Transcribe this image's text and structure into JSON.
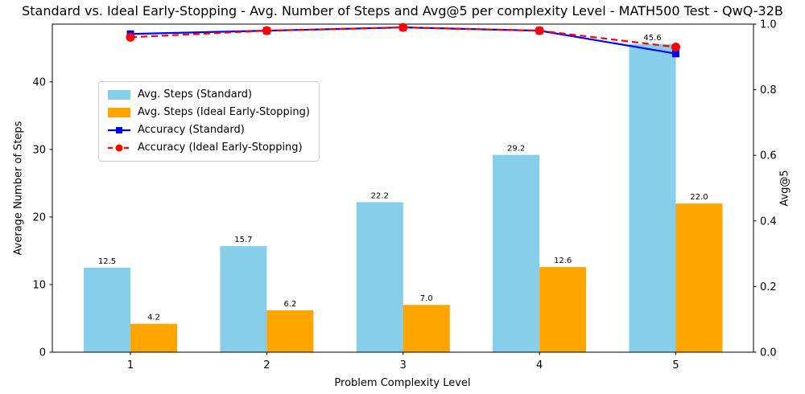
{
  "chart_data": {
    "type": "bar",
    "title": "Standard vs. Ideal Early-Stopping - Avg. Number of Steps and Avg@5 per complexity Level - MATH500 Test - QwQ-32B",
    "xlabel": "Problem Complexity Level",
    "ylabel_left": "Average Number of Steps",
    "ylabel_right": "Avg@5",
    "categories": [
      "1",
      "2",
      "3",
      "4",
      "5"
    ],
    "bar_series": [
      {
        "name": "Avg. Steps (Standard)",
        "color": "#87CEEB",
        "values": [
          12.5,
          15.7,
          22.2,
          29.2,
          45.6
        ],
        "labels": [
          "12.5",
          "15.7",
          "22.2",
          "29.2",
          "45.6"
        ]
      },
      {
        "name": "Avg. Steps (Ideal Early-Stopping)",
        "color": "#FFA500",
        "values": [
          4.2,
          6.2,
          7.0,
          12.6,
          22.0
        ],
        "labels": [
          "4.2",
          "6.2",
          "7.0",
          "12.6",
          "22.0"
        ]
      }
    ],
    "line_series": [
      {
        "name": "Accuracy (Standard)",
        "color": "#0000FF",
        "style": "solid",
        "marker": "square",
        "values": [
          0.97,
          0.98,
          0.99,
          0.98,
          0.91
        ]
      },
      {
        "name": "Accuracy (Ideal Early-Stopping)",
        "color": "#FF0000",
        "style": "dashed",
        "marker": "circle",
        "values": [
          0.96,
          0.98,
          0.99,
          0.98,
          0.93
        ]
      }
    ],
    "left_axis": {
      "ticks": [
        "0",
        "10",
        "20",
        "30",
        "40"
      ],
      "tick_values": [
        0,
        10,
        20,
        30,
        40
      ],
      "ylim": [
        0,
        48.55
      ]
    },
    "right_axis": {
      "ticks": [
        "0.0",
        "0.2",
        "0.4",
        "0.6",
        "0.8",
        "1.0"
      ],
      "tick_values": [
        0,
        0.2,
        0.4,
        0.6,
        0.8,
        1.0
      ],
      "ylim": [
        0,
        1.0
      ]
    },
    "legend_position": "upper-left",
    "grid": false
  }
}
